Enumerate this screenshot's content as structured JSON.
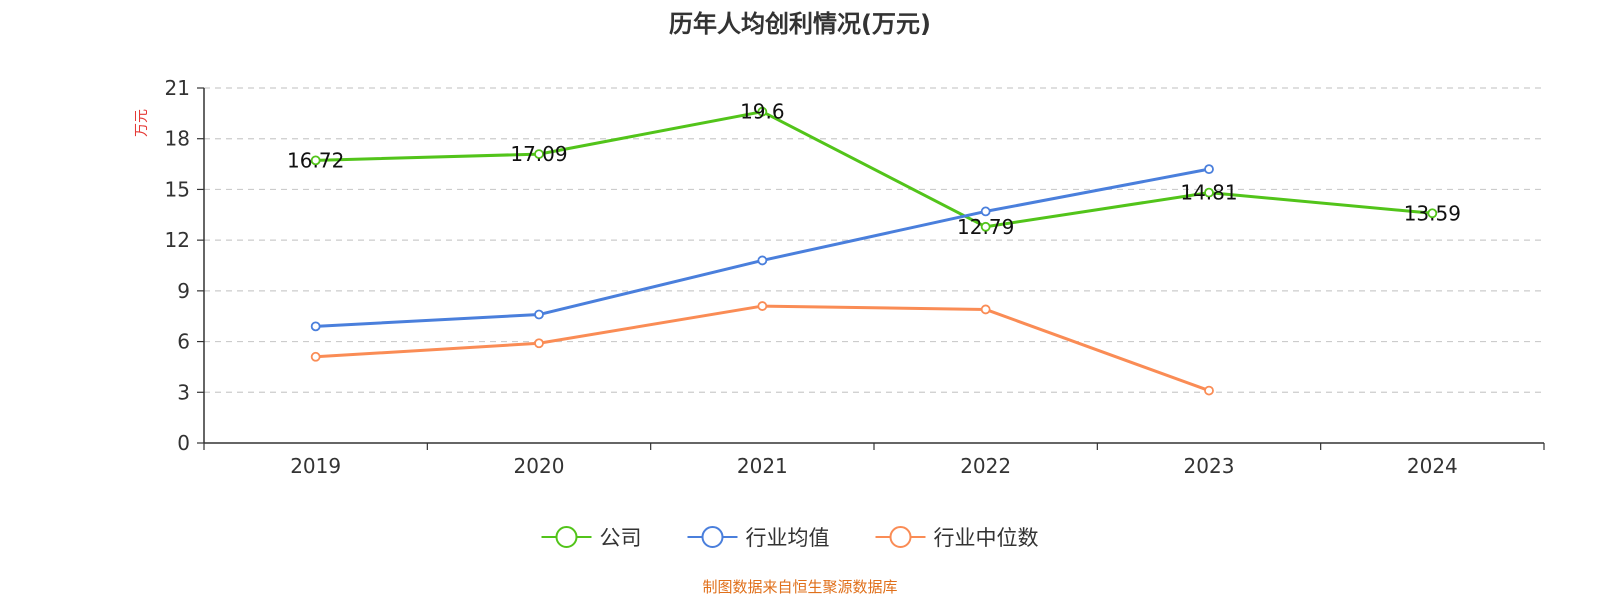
{
  "chart_data": {
    "type": "line",
    "title": "历年人均创利情况(万元)",
    "ylabel": "万元",
    "xlabel": "",
    "categories": [
      "2019",
      "2020",
      "2021",
      "2022",
      "2023",
      "2024"
    ],
    "ylim": [
      0,
      21
    ],
    "yticks": [
      0,
      3,
      6,
      9,
      12,
      15,
      18,
      21
    ],
    "grid": true,
    "legend_position": "bottom-center",
    "series": [
      {
        "name": "公司",
        "color": "#52c41a",
        "values": [
          16.72,
          17.09,
          19.6,
          12.79,
          14.81,
          13.59
        ],
        "labels": [
          "16.72",
          "17.09",
          "19.6",
          "12.79",
          "14.81",
          "13.59"
        ]
      },
      {
        "name": "行业均值",
        "color": "#4a7fdc",
        "values": [
          6.9,
          7.6,
          10.8,
          13.7,
          16.2,
          null
        ]
      },
      {
        "name": "行业中位数",
        "color": "#fa8c55",
        "values": [
          5.1,
          5.9,
          8.1,
          7.9,
          3.1,
          null
        ]
      }
    ]
  },
  "source": "制图数据来自恒生聚源数据库",
  "colors": {
    "axis": "#333333",
    "grid": "#cccccc",
    "unit": "#e53935",
    "source": "#e0701b"
  }
}
